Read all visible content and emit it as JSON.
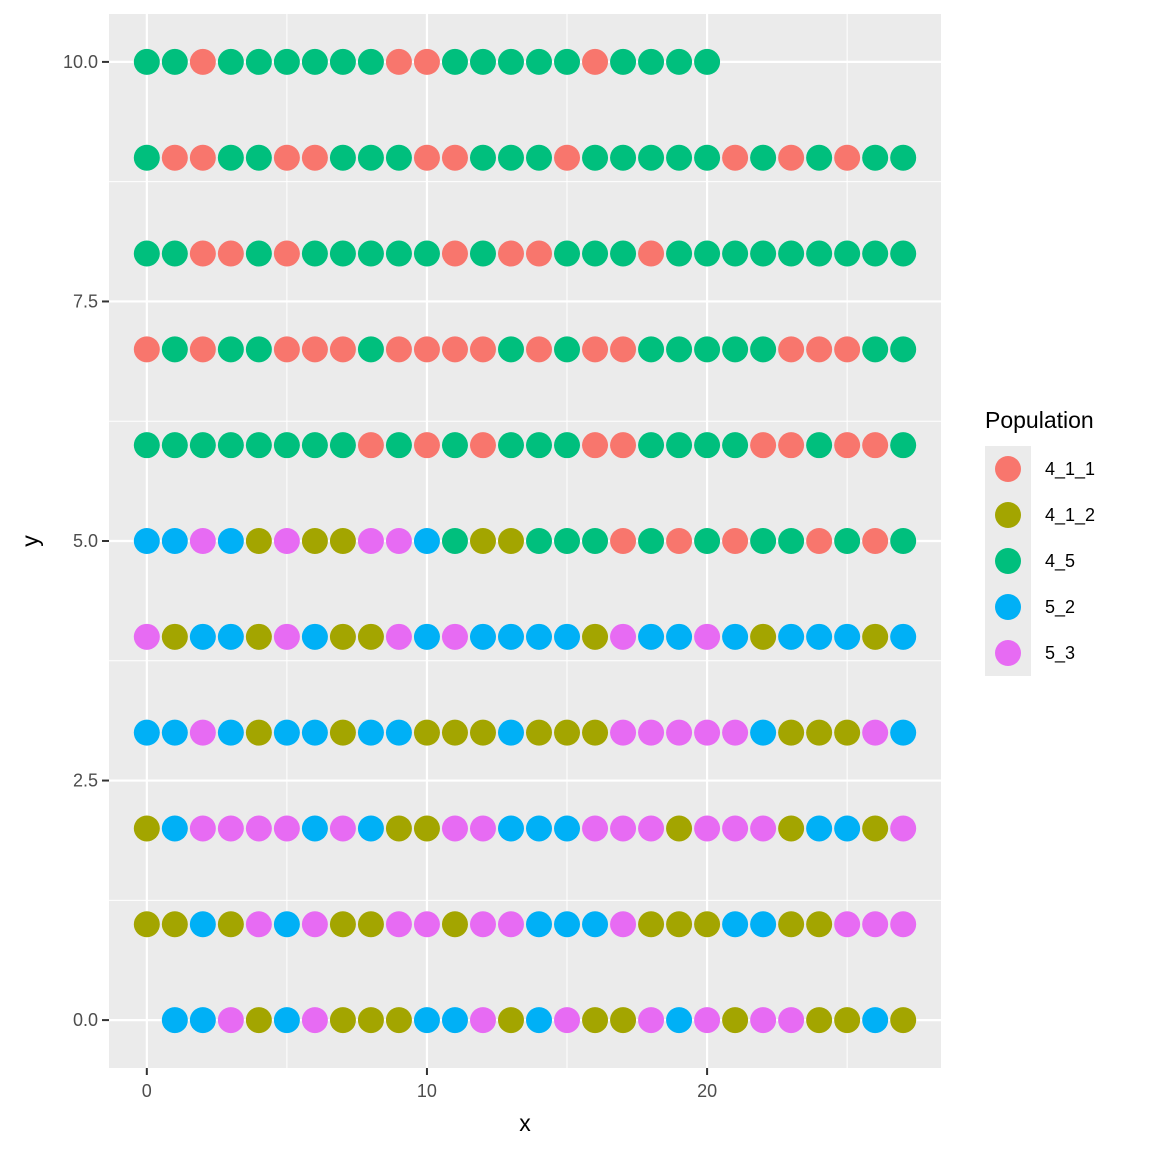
{
  "chart_data": {
    "type": "scatter",
    "title": "",
    "xlabel": "x",
    "ylabel": "y",
    "xlim": [
      -1.35,
      28.35
    ],
    "ylim": [
      -0.5,
      10.5
    ],
    "x_ticks": [
      0,
      10,
      20
    ],
    "x_tick_labels": [
      "0",
      "10",
      "20"
    ],
    "y_ticks": [
      0,
      2.5,
      5,
      7.5,
      10
    ],
    "y_tick_labels": [
      "0.0",
      "2.5",
      "5.0",
      "7.5",
      "10.0"
    ],
    "grid": true,
    "legend": {
      "title": "Population",
      "position": "right",
      "entries": [
        {
          "name": "4_1_1",
          "color": "#F8766D"
        },
        {
          "name": "4_1_2",
          "color": "#A3A500"
        },
        {
          "name": "4_5",
          "color": "#00BF7D"
        },
        {
          "name": "5_2",
          "color": "#00B0F6"
        },
        {
          "name": "5_3",
          "color": "#E76BF3"
        }
      ]
    },
    "rows": [
      {
        "y": 0,
        "x_start": 1,
        "codes": "DDEBDEBBBDDEBDEBBEDEBEEBBDB"
      },
      {
        "y": 1,
        "x_start": 0,
        "codes": "BBDBEDEBBEEBEEDDDEBBBDDBBEEE"
      },
      {
        "y": 2,
        "x_start": 0,
        "codes": "BDEEEEDEDBBEEDDDEEEBEEEBDDBE"
      },
      {
        "y": 3,
        "x_start": 0,
        "codes": "DDEDBDDBDDBBBDBBBEEEEEDBBBED"
      },
      {
        "y": 4,
        "x_start": 0,
        "codes": "EBDDBEDBBEDEDDDDBEDDEDBDDDBD"
      },
      {
        "y": 5,
        "x_start": 0,
        "codes": "DDEDBEBBEEDCBBCCCACACACCACAC"
      },
      {
        "y": 6,
        "x_start": 0,
        "codes": "CCCCCCCCACACACCCAACCCCAACAAC"
      },
      {
        "y": 7,
        "x_start": 0,
        "codes": "ACACCAAACAAAACACAACCCCCAAACC"
      },
      {
        "y": 8,
        "x_start": 0,
        "codes": "CCAACACCCCCACAACCCACCCCCCCCC"
      },
      {
        "y": 9,
        "x_start": 0,
        "codes": "CAACCAACCCAACCCACCCCCACACACC"
      },
      {
        "y": 10,
        "x_start": 0,
        "codes": "CCACCCCCCAACCCCCACCCC"
      }
    ],
    "code_map": {
      "A": "4_1_1",
      "B": "4_1_2",
      "C": "4_5",
      "D": "5_2",
      "E": "5_3"
    }
  }
}
